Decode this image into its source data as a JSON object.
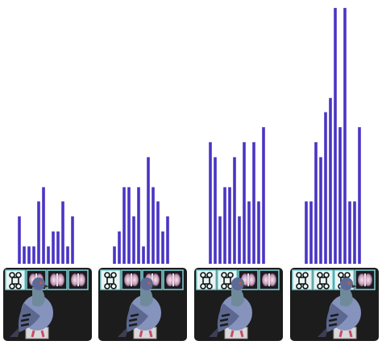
{
  "chart_data": [
    {
      "type": "bar",
      "color": "#4a35c4",
      "ylim": [
        0,
        330
      ],
      "values": [
        60,
        22,
        22,
        22,
        79,
        97,
        22,
        41,
        41,
        79,
        22,
        60
      ]
    },
    {
      "type": "bar",
      "color": "#4a35c4",
      "ylim": [
        0,
        330
      ],
      "values": [
        22,
        41,
        97,
        97,
        60,
        97,
        22,
        135,
        97,
        79,
        41,
        60
      ]
    },
    {
      "type": "bar",
      "color": "#4a35c4",
      "ylim": [
        0,
        330
      ],
      "values": [
        154,
        135,
        60,
        97,
        97,
        135,
        60,
        154,
        79,
        154,
        79,
        173
      ]
    },
    {
      "type": "bar",
      "color": "#4a35c4",
      "ylim": [
        0,
        330
      ],
      "values": [
        79,
        79,
        154,
        135,
        192,
        210,
        324,
        173,
        324,
        79,
        79,
        173
      ]
    }
  ]
}
